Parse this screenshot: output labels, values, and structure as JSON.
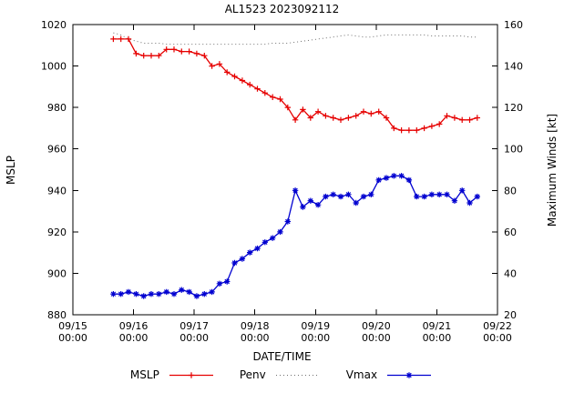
{
  "chart_data": {
    "type": "line",
    "title": "AL1523 2023092112",
    "xlabel": "DATE/TIME",
    "ylabel_left": "MSLP",
    "ylabel_right": "Maximum Winds [kt]",
    "x_domain_days": [
      0,
      7
    ],
    "x_ticks": [
      {
        "date": "09/15",
        "time": "00:00"
      },
      {
        "date": "09/16",
        "time": "00:00"
      },
      {
        "date": "09/17",
        "time": "00:00"
      },
      {
        "date": "09/18",
        "time": "00:00"
      },
      {
        "date": "09/19",
        "time": "00:00"
      },
      {
        "date": "09/20",
        "time": "00:00"
      },
      {
        "date": "09/21",
        "time": "00:00"
      },
      {
        "date": "09/22",
        "time": "00:00"
      }
    ],
    "y_left": {
      "min": 880,
      "max": 1020,
      "ticks": [
        880,
        900,
        920,
        940,
        960,
        980,
        1000,
        1020
      ]
    },
    "y_right": {
      "min": 20,
      "max": 160,
      "ticks": [
        20,
        40,
        60,
        80,
        100,
        120,
        140,
        160
      ]
    },
    "grid": false,
    "legend_position": "bottom-center",
    "x_days": [
      0.667,
      0.792,
      0.917,
      1.042,
      1.167,
      1.292,
      1.417,
      1.542,
      1.667,
      1.792,
      1.917,
      2.042,
      2.167,
      2.292,
      2.417,
      2.542,
      2.667,
      2.792,
      2.917,
      3.042,
      3.167,
      3.292,
      3.417,
      3.542,
      3.667,
      3.792,
      3.917,
      4.042,
      4.167,
      4.292,
      4.417,
      4.542,
      4.667,
      4.792,
      4.917,
      5.042,
      5.167,
      5.292,
      5.417,
      5.542,
      5.667,
      5.792,
      5.917,
      6.042,
      6.167,
      6.292,
      6.417,
      6.542,
      6.667
    ],
    "series": [
      {
        "name": "Penv",
        "axis": "left",
        "color": "#707070",
        "dash": "1 3",
        "marker": "none",
        "values": [
          1016,
          1015,
          1013,
          1012,
          1011,
          1011,
          1011,
          1010.5,
          1010.5,
          1010.5,
          1010.5,
          1010.5,
          1010.5,
          1010.5,
          1010.5,
          1010.5,
          1010.5,
          1010.5,
          1010.5,
          1010.5,
          1010.5,
          1011,
          1011,
          1011,
          1011.5,
          1012,
          1012.5,
          1013,
          1013.5,
          1014,
          1014.5,
          1015,
          1014.5,
          1014,
          1014,
          1014.5,
          1015,
          1015,
          1015,
          1015,
          1015,
          1015,
          1014.5,
          1014.5,
          1014.5,
          1014.5,
          1014.5,
          1014,
          1014
        ]
      },
      {
        "name": "MSLP",
        "axis": "left",
        "color": "#e60000",
        "dash": "",
        "marker": "plus",
        "values": [
          1013,
          1013,
          1013,
          1006,
          1005,
          1005,
          1005,
          1008,
          1008,
          1007,
          1007,
          1006,
          1005,
          1000,
          1001,
          997,
          995,
          993,
          991,
          989,
          987,
          985,
          984,
          980,
          974,
          979,
          975,
          978,
          976,
          975,
          974,
          975,
          976,
          978,
          977,
          978,
          975,
          970,
          969,
          969,
          969,
          970,
          971,
          972,
          976,
          975,
          974,
          974,
          975
        ]
      },
      {
        "name": "Vmax",
        "axis": "right",
        "color": "#0000d0",
        "dash": "",
        "marker": "star",
        "values": [
          30,
          30,
          31,
          30,
          29,
          30,
          30,
          31,
          30,
          32,
          31,
          29,
          30,
          31,
          35,
          36,
          45,
          47,
          50,
          52,
          55,
          57,
          60,
          65,
          80,
          72,
          75,
          73,
          77,
          78,
          77,
          78,
          74,
          77,
          78,
          85,
          86,
          87,
          87,
          85,
          77,
          77,
          78,
          78,
          78,
          75,
          80,
          74,
          77
        ]
      }
    ],
    "legend": [
      {
        "label": "MSLP",
        "color": "#e60000",
        "dash": "",
        "marker": "plus"
      },
      {
        "label": "Penv",
        "color": "#707070",
        "dash": "1 3",
        "marker": "none"
      },
      {
        "label": "Vmax",
        "color": "#0000d0",
        "dash": "",
        "marker": "star"
      }
    ]
  }
}
